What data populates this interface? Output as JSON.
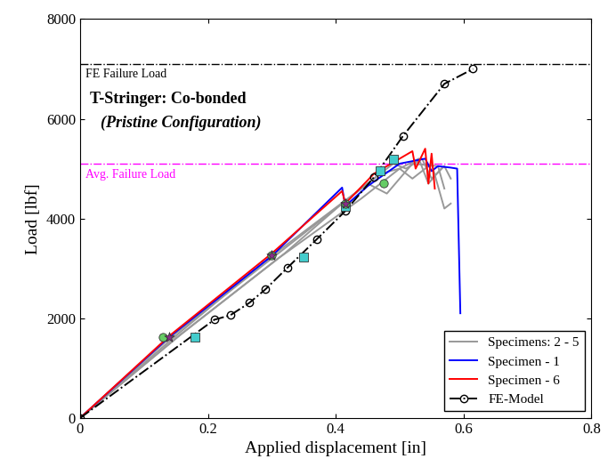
{
  "chart_data": {
    "type": "line",
    "title": "T-Stringer: Co-bonded",
    "subtitle": "(Pristine Configuration)",
    "x_label": "Applied displacement [in]",
    "y_label": "Load [lbf]",
    "xlim": [
      0,
      0.8
    ],
    "xticks": [
      0,
      0.2,
      0.4,
      0.6,
      0.8
    ],
    "ylim": [
      0,
      8000
    ],
    "yticks": [
      0,
      2000,
      4000,
      6000,
      8000
    ],
    "grid": false,
    "legend": "lower right",
    "reference_lines": [
      {
        "label": "FE Failure Load",
        "value": 7100,
        "color": "#000000"
      },
      {
        "label": "Avg. Failure Load",
        "value": 5100,
        "color": "#ff00ff"
      }
    ],
    "series": [
      {
        "name": "Specimens: 2 - 5",
        "color": "#999999",
        "type": "line",
        "line_style": "solid",
        "x": [
          0,
          0.14,
          0.3,
          0.42,
          0.47,
          0.5,
          0.52,
          0.55,
          0.57,
          0.58
        ],
        "values": [
          0,
          1600,
          3200,
          4400,
          4900,
          5000,
          4800,
          5100,
          4200,
          4300
        ]
      },
      {
        "color": "#999999",
        "type": "line",
        "line_style": "solid",
        "x": [
          0,
          0.15,
          0.3,
          0.45,
          0.48,
          0.52,
          0.56,
          0.57
        ],
        "values": [
          0,
          1650,
          3250,
          4700,
          4500,
          5100,
          5050,
          4600
        ]
      },
      {
        "color": "#999999",
        "type": "line",
        "line_style": "solid",
        "x": [
          0,
          0.15,
          0.31,
          0.44,
          0.475,
          0.5,
          0.53,
          0.545,
          0.565
        ],
        "values": [
          0,
          1600,
          3200,
          4400,
          4750,
          5000,
          5200,
          4700,
          5000
        ]
      },
      {
        "color": "#999999",
        "type": "line",
        "line_style": "solid",
        "x": [
          0,
          0.16,
          0.32,
          0.41,
          0.46,
          0.49,
          0.51,
          0.535,
          0.55,
          0.57,
          0.58
        ],
        "values": [
          0,
          1700,
          3300,
          4300,
          4800,
          5100,
          5000,
          5200,
          4800,
          5050,
          4800
        ]
      },
      {
        "name": "Specimen - 1",
        "color": "#0000ff",
        "type": "line",
        "line_style": "solid",
        "x": [
          0,
          0.14,
          0.3,
          0.41,
          0.415,
          0.45,
          0.5,
          0.54,
          0.55,
          0.56,
          0.58,
          0.59,
          0.595
        ],
        "values": [
          0,
          1630,
          3250,
          4620,
          4250,
          4650,
          5100,
          5200,
          4950,
          5050,
          5020,
          5000,
          2100
        ]
      },
      {
        "name": "Specimen - 6",
        "color": "#ff0000",
        "type": "line",
        "line_style": "solid",
        "x": [
          0,
          0.14,
          0.3,
          0.41,
          0.415,
          0.46,
          0.5,
          0.52,
          0.525,
          0.54,
          0.545,
          0.55,
          0.555
        ],
        "values": [
          0,
          1650,
          3300,
          4550,
          4300,
          4900,
          5200,
          5350,
          5000,
          5400,
          4700,
          5300,
          4600
        ]
      },
      {
        "name": "FE-Model",
        "color": "#000000",
        "type": "line",
        "line_style": "dashdot",
        "marker": "circle",
        "x": [
          0,
          0.21,
          0.235,
          0.265,
          0.29,
          0.325,
          0.37,
          0.415,
          0.46,
          0.505,
          0.57,
          0.615
        ],
        "values": [
          0,
          1970,
          2060,
          2310,
          2580,
          3020,
          3580,
          4150,
          4830,
          5650,
          6700,
          7000
        ]
      },
      {
        "color": "#44cccc",
        "type": "scatter",
        "marker": "square",
        "x": [
          0.18,
          0.35,
          0.415,
          0.47,
          0.49
        ],
        "values": [
          1620,
          3230,
          4250,
          4950,
          5180
        ]
      },
      {
        "color": "#66cc66",
        "type": "scatter",
        "marker": "circle",
        "x": [
          0.13,
          0.3,
          0.415,
          0.475
        ],
        "values": [
          1620,
          3270,
          4300,
          4700
        ]
      },
      {
        "color": "#8b2b8b",
        "type": "scatter",
        "marker": "star",
        "x": [
          0.14,
          0.3,
          0.415
        ],
        "values": [
          1630,
          3260,
          4300
        ]
      }
    ]
  }
}
